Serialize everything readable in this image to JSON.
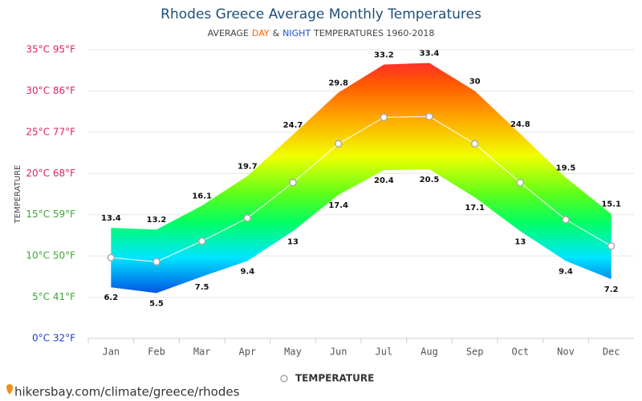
{
  "chart_data": {
    "type": "band",
    "title": "Rhodes Greece Average Monthly Temperatures",
    "subtitle": [
      {
        "text": "AVERAGE",
        "color": "#444"
      },
      {
        "text": "DAY",
        "color": "#ff6600"
      },
      {
        "text": "&",
        "color": "#444"
      },
      {
        "text": "NIGHT",
        "color": "#1a4fd6"
      },
      {
        "text": "TEMPERATURES 1960-2018",
        "color": "#444"
      }
    ],
    "y_label": "TEMPERATURE",
    "categories": [
      "Jan",
      "Feb",
      "Mar",
      "Apr",
      "May",
      "Jun",
      "Jul",
      "Aug",
      "Sep",
      "Oct",
      "Nov",
      "Dec"
    ],
    "series": [
      {
        "name": "Day",
        "values": [
          13.4,
          13.2,
          16.1,
          19.7,
          24.7,
          29.8,
          33.2,
          33.4,
          30,
          24.8,
          19.5,
          15.1
        ]
      },
      {
        "name": "Night",
        "values": [
          6.2,
          5.5,
          7.5,
          9.4,
          13,
          17.4,
          20.4,
          20.5,
          17.1,
          13,
          9.4,
          7.2
        ]
      },
      {
        "name": "TEMPERATURE",
        "color": "#ffffff",
        "values": [
          9.8,
          9.3,
          11.8,
          14.6,
          18.9,
          23.6,
          26.8,
          26.9,
          23.6,
          18.9,
          14.4,
          11.2
        ]
      }
    ],
    "ylim": [
      0,
      35
    ],
    "yticks": [
      {
        "value": 0,
        "label": "0°C 32°F"
      },
      {
        "value": 5,
        "label": "5°C 41°F"
      },
      {
        "value": 10,
        "label": "10°C 50°F"
      },
      {
        "value": 15,
        "label": "15°C 59°F"
      },
      {
        "value": 20,
        "label": "20°C 68°F"
      },
      {
        "value": 25,
        "label": "25°C 77°F"
      },
      {
        "value": 30,
        "label": "30°C 86°F"
      },
      {
        "value": 35,
        "label": "35°C 95°F"
      }
    ],
    "ytick_colors": [
      "#1a3fd0",
      "#3aa832",
      "#3aa832",
      "#3aa832",
      "#e0245e",
      "#e0245e",
      "#e0245e",
      "#e0245e"
    ],
    "grid": true,
    "source": "hikersbay.com/climate/greece/rhodes"
  }
}
